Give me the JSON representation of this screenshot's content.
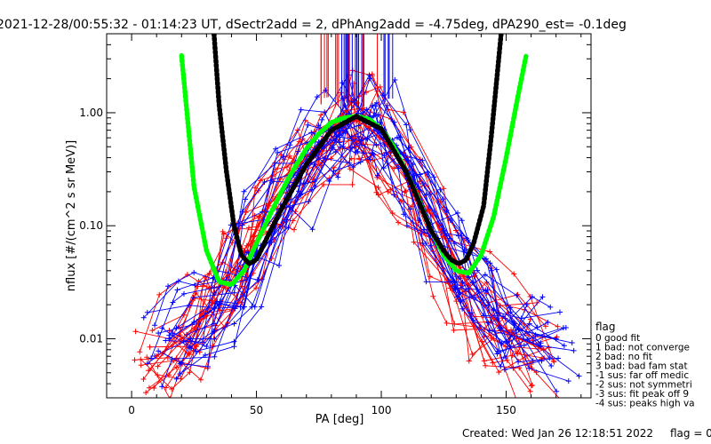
{
  "chart_data": {
    "type": "line",
    "title": "2021-12-28/00:55:32 - 01:14:23 UT, dSectr2add = 2, dPhAng2add = -4.75deg, dPA290_est=  -0.1deg",
    "xlabel": "PA [deg]",
    "ylabel": "nflux [#/(cm^2 s sr MeV)]",
    "xlim": [
      -10,
      184
    ],
    "ylim": [
      0.003,
      5.0
    ],
    "yscale": "log",
    "x_ticks": [
      0,
      50,
      100,
      150
    ],
    "x_tick_labels": [
      "0",
      "50",
      "100",
      "150"
    ],
    "y_ticks": [
      0.01,
      0.1,
      1.0
    ],
    "y_tick_labels": [
      "0.01",
      "0.10",
      "1.00"
    ],
    "grid": false,
    "colors": {
      "red": "#ff0000",
      "blue": "#0000ff",
      "black": "#000000",
      "green": "#00ff00"
    },
    "series": [
      {
        "color": "red",
        "style": "thin line + plus markers",
        "x": [
          10,
          20,
          30,
          37,
          45,
          55,
          65,
          75,
          85,
          90,
          95,
          105,
          115,
          125,
          135,
          145,
          155,
          165
        ],
        "y": [
          0.007,
          0.01,
          0.016,
          0.03,
          0.06,
          0.15,
          0.3,
          0.55,
          0.8,
          0.85,
          0.75,
          0.45,
          0.2,
          0.08,
          0.03,
          0.015,
          0.01,
          0.008
        ]
      },
      {
        "color": "blue",
        "style": "thin line + plus markers",
        "x": [
          15,
          25,
          35,
          45,
          55,
          65,
          75,
          85,
          90,
          95,
          105,
          115,
          125,
          135,
          145,
          155,
          170
        ],
        "y": [
          0.01,
          0.014,
          0.02,
          0.045,
          0.12,
          0.28,
          0.55,
          0.85,
          0.95,
          0.85,
          0.5,
          0.22,
          0.09,
          0.035,
          0.018,
          0.012,
          0.01
        ]
      },
      {
        "color": "green",
        "style": "thick dotted fit curve",
        "x": [
          20,
          25,
          30,
          35,
          40,
          45,
          50,
          55,
          60,
          65,
          70,
          75,
          80,
          85,
          90,
          95,
          100,
          105,
          110,
          115,
          120,
          125,
          130,
          135,
          140,
          145,
          150,
          155,
          158
        ],
        "y": [
          3.2,
          0.22,
          0.06,
          0.032,
          0.03,
          0.04,
          0.07,
          0.12,
          0.2,
          0.32,
          0.48,
          0.65,
          0.82,
          0.9,
          0.93,
          0.88,
          0.72,
          0.5,
          0.3,
          0.17,
          0.09,
          0.055,
          0.04,
          0.038,
          0.055,
          0.12,
          0.4,
          1.5,
          3.2
        ]
      },
      {
        "color": "black",
        "style": "thick dotted fit curve",
        "x": [
          33,
          35,
          38,
          41,
          44,
          47,
          50,
          55,
          60,
          70,
          80,
          90,
          100,
          110,
          120,
          125,
          128,
          131,
          134,
          137,
          141,
          144,
          148
        ],
        "y": [
          5.0,
          1.2,
          0.3,
          0.1,
          0.055,
          0.046,
          0.05,
          0.085,
          0.14,
          0.35,
          0.7,
          0.93,
          0.72,
          0.3,
          0.09,
          0.06,
          0.05,
          0.046,
          0.05,
          0.07,
          0.15,
          0.6,
          5.0
        ]
      }
    ],
    "legend_title": "flag",
    "legend": [
      " 0 good fit",
      " 1 bad: not converge",
      " 2 bad: no fit",
      " 3 bad: bad fam stat",
      "-1 sus: far off medic",
      "-2 sus: not symmetri",
      "-3 sus: fit peak off 9",
      "-4 sus: peaks high va"
    ],
    "legend_placement": "right"
  },
  "footer": {
    "created": "Created: Wed Jan 26 12:18:51 2022",
    "flag": "flag = 0"
  }
}
